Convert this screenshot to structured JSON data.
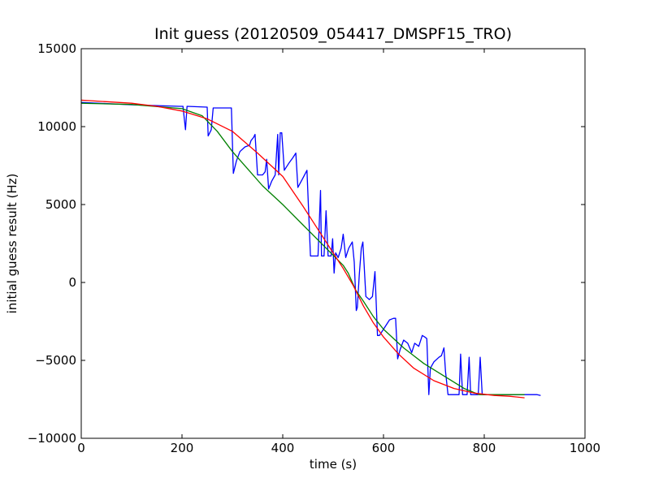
{
  "chart_data": {
    "type": "line",
    "title": "Init guess (20120509_054417_DMSPF15_TRO)",
    "xlabel": "time (s)",
    "ylabel": "initial guess result (Hz)",
    "xlim": [
      0,
      1000
    ],
    "ylim": [
      -10000,
      15000
    ],
    "xticks": [
      0,
      200,
      400,
      600,
      800,
      1000
    ],
    "yticks": [
      -10000,
      -5000,
      0,
      5000,
      10000,
      15000
    ],
    "xtick_labels": [
      "0",
      "200",
      "400",
      "600",
      "800",
      "1000"
    ],
    "ytick_labels": [
      "−10000",
      "−5000",
      "0",
      "5000",
      "10000",
      "15000"
    ],
    "grid": false,
    "series": [
      {
        "color": "#0000ff",
        "points": [
          [
            0,
            11550
          ],
          [
            100,
            11400
          ],
          [
            195,
            11300
          ],
          [
            202,
            11300
          ],
          [
            207,
            9800
          ],
          [
            210,
            11300
          ],
          [
            250,
            11250
          ],
          [
            252,
            9400
          ],
          [
            255,
            9600
          ],
          [
            258,
            9800
          ],
          [
            262,
            11200
          ],
          [
            298,
            11200
          ],
          [
            302,
            7000
          ],
          [
            308,
            7800
          ],
          [
            315,
            8400
          ],
          [
            325,
            8700
          ],
          [
            334,
            8800
          ],
          [
            337,
            9100
          ],
          [
            342,
            9300
          ],
          [
            345,
            9500
          ],
          [
            350,
            6900
          ],
          [
            360,
            6900
          ],
          [
            365,
            7100
          ],
          [
            368,
            7900
          ],
          [
            372,
            6000
          ],
          [
            378,
            6500
          ],
          [
            385,
            6900
          ],
          [
            390,
            9500
          ],
          [
            392,
            6900
          ],
          [
            395,
            9600
          ],
          [
            398,
            9600
          ],
          [
            403,
            7200
          ],
          [
            413,
            7700
          ],
          [
            420,
            8000
          ],
          [
            426,
            8300
          ],
          [
            430,
            6100
          ],
          [
            440,
            6700
          ],
          [
            448,
            7200
          ],
          [
            455,
            1700
          ],
          [
            470,
            1700
          ],
          [
            475,
            5900
          ],
          [
            477,
            1700
          ],
          [
            482,
            1700
          ],
          [
            486,
            4600
          ],
          [
            490,
            1700
          ],
          [
            496,
            1700
          ],
          [
            499,
            2800
          ],
          [
            502,
            600
          ],
          [
            505,
            1900
          ],
          [
            510,
            1600
          ],
          [
            516,
            2200
          ],
          [
            520,
            3100
          ],
          [
            525,
            1600
          ],
          [
            531,
            2200
          ],
          [
            538,
            2600
          ],
          [
            542,
            1300
          ],
          [
            546,
            -1800
          ],
          [
            548,
            -1600
          ],
          [
            552,
            500
          ],
          [
            556,
            2200
          ],
          [
            559,
            2600
          ],
          [
            565,
            -900
          ],
          [
            572,
            -1100
          ],
          [
            578,
            -900
          ],
          [
            583,
            700
          ],
          [
            588,
            -3400
          ],
          [
            592,
            -3400
          ],
          [
            600,
            -3000
          ],
          [
            612,
            -2400
          ],
          [
            620,
            -2300
          ],
          [
            624,
            -2300
          ],
          [
            628,
            -4900
          ],
          [
            633,
            -4300
          ],
          [
            640,
            -3700
          ],
          [
            648,
            -3900
          ],
          [
            656,
            -4500
          ],
          [
            662,
            -3900
          ],
          [
            670,
            -4100
          ],
          [
            677,
            -3400
          ],
          [
            682,
            -3500
          ],
          [
            686,
            -3600
          ],
          [
            690,
            -7200
          ],
          [
            693,
            -5500
          ],
          [
            700,
            -5100
          ],
          [
            710,
            -4800
          ],
          [
            715,
            -4700
          ],
          [
            720,
            -4200
          ],
          [
            723,
            -5700
          ],
          [
            728,
            -7200
          ],
          [
            750,
            -7200
          ],
          [
            753,
            -4600
          ],
          [
            757,
            -7200
          ],
          [
            766,
            -7200
          ],
          [
            770,
            -4800
          ],
          [
            773,
            -7200
          ],
          [
            788,
            -7200
          ],
          [
            792,
            -4800
          ],
          [
            796,
            -7200
          ],
          [
            810,
            -7200
          ],
          [
            860,
            -7200
          ],
          [
            890,
            -7200
          ],
          [
            905,
            -7200
          ],
          [
            912,
            -7250
          ]
        ]
      },
      {
        "color": "#008000",
        "points": [
          [
            0,
            11500
          ],
          [
            100,
            11420
          ],
          [
            200,
            11150
          ],
          [
            240,
            10700
          ],
          [
            270,
            9700
          ],
          [
            300,
            8400
          ],
          [
            330,
            7300
          ],
          [
            360,
            6200
          ],
          [
            400,
            5000
          ],
          [
            440,
            3700
          ],
          [
            480,
            2400
          ],
          [
            520,
            1100
          ],
          [
            530,
            600
          ],
          [
            545,
            -500
          ],
          [
            560,
            -1200
          ],
          [
            580,
            -2200
          ],
          [
            600,
            -3000
          ],
          [
            640,
            -4200
          ],
          [
            680,
            -5200
          ],
          [
            720,
            -6000
          ],
          [
            760,
            -6800
          ],
          [
            790,
            -7200
          ],
          [
            850,
            -7200
          ],
          [
            880,
            -7200
          ]
        ]
      },
      {
        "color": "#ff0000",
        "points": [
          [
            0,
            11700
          ],
          [
            100,
            11500
          ],
          [
            150,
            11300
          ],
          [
            200,
            11000
          ],
          [
            250,
            10500
          ],
          [
            300,
            9700
          ],
          [
            350,
            8300
          ],
          [
            400,
            6800
          ],
          [
            440,
            4900
          ],
          [
            480,
            2900
          ],
          [
            520,
            900
          ],
          [
            540,
            -200
          ],
          [
            560,
            -1500
          ],
          [
            580,
            -2600
          ],
          [
            600,
            -3500
          ],
          [
            630,
            -4600
          ],
          [
            660,
            -5500
          ],
          [
            700,
            -6300
          ],
          [
            740,
            -6800
          ],
          [
            780,
            -7100
          ],
          [
            820,
            -7250
          ],
          [
            850,
            -7300
          ],
          [
            880,
            -7400
          ]
        ]
      }
    ]
  }
}
